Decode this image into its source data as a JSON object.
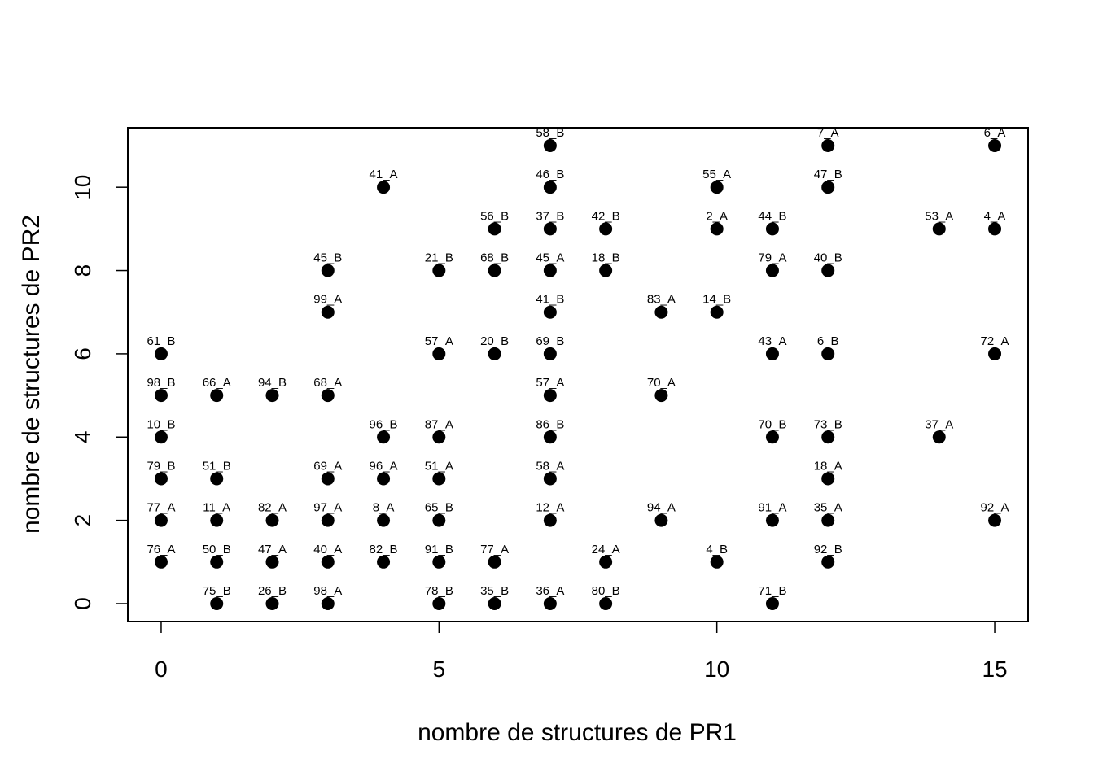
{
  "chart_data": {
    "type": "scatter",
    "title": "",
    "xlabel": "nombre de structures de PR1",
    "ylabel": "nombre de structures de PR2",
    "xlim": [
      -0.6,
      15.6
    ],
    "ylim": [
      -0.43,
      11.43
    ],
    "xticks": [
      0,
      5,
      10,
      15
    ],
    "yticks": [
      0,
      2,
      4,
      6,
      8,
      10
    ],
    "marker_color": "#000000",
    "grid": false,
    "points": [
      {
        "x": 7,
        "y": 11,
        "label": "58_B"
      },
      {
        "x": 12,
        "y": 11,
        "label": "7_A"
      },
      {
        "x": 15,
        "y": 11,
        "label": "6_A"
      },
      {
        "x": 4,
        "y": 10,
        "label": "41_A"
      },
      {
        "x": 7,
        "y": 10,
        "label": "46_B"
      },
      {
        "x": 10,
        "y": 10,
        "label": "55_A"
      },
      {
        "x": 12,
        "y": 10,
        "label": "47_B"
      },
      {
        "x": 6,
        "y": 9,
        "label": "56_B"
      },
      {
        "x": 7,
        "y": 9,
        "label": "37_B"
      },
      {
        "x": 8,
        "y": 9,
        "label": "42_B"
      },
      {
        "x": 10,
        "y": 9,
        "label": "2_A"
      },
      {
        "x": 11,
        "y": 9,
        "label": "44_B"
      },
      {
        "x": 14,
        "y": 9,
        "label": "53_A"
      },
      {
        "x": 15,
        "y": 9,
        "label": "4_A"
      },
      {
        "x": 3,
        "y": 8,
        "label": "45_B"
      },
      {
        "x": 5,
        "y": 8,
        "label": "21_B"
      },
      {
        "x": 6,
        "y": 8,
        "label": "68_B"
      },
      {
        "x": 7,
        "y": 8,
        "label": "45_A"
      },
      {
        "x": 8,
        "y": 8,
        "label": "18_B"
      },
      {
        "x": 11,
        "y": 8,
        "label": "79_A"
      },
      {
        "x": 12,
        "y": 8,
        "label": "40_B"
      },
      {
        "x": 3,
        "y": 7,
        "label": "99_A"
      },
      {
        "x": 7,
        "y": 7,
        "label": "41_B"
      },
      {
        "x": 9,
        "y": 7,
        "label": "83_A"
      },
      {
        "x": 10,
        "y": 7,
        "label": "14_B"
      },
      {
        "x": 0,
        "y": 6,
        "label": "61_B"
      },
      {
        "x": 5,
        "y": 6,
        "label": "57_A"
      },
      {
        "x": 6,
        "y": 6,
        "label": "20_B"
      },
      {
        "x": 7,
        "y": 6,
        "label": "69_B"
      },
      {
        "x": 11,
        "y": 6,
        "label": "43_A"
      },
      {
        "x": 12,
        "y": 6,
        "label": "6_B"
      },
      {
        "x": 15,
        "y": 6,
        "label": "72_A"
      },
      {
        "x": 0,
        "y": 5,
        "label": "98_B"
      },
      {
        "x": 1,
        "y": 5,
        "label": "66_A"
      },
      {
        "x": 2,
        "y": 5,
        "label": "94_B"
      },
      {
        "x": 3,
        "y": 5,
        "label": "68_A"
      },
      {
        "x": 7,
        "y": 5,
        "label": "57_A"
      },
      {
        "x": 9,
        "y": 5,
        "label": "70_A"
      },
      {
        "x": 0,
        "y": 4,
        "label": "10_B"
      },
      {
        "x": 4,
        "y": 4,
        "label": "96_B"
      },
      {
        "x": 5,
        "y": 4,
        "label": "87_A"
      },
      {
        "x": 7,
        "y": 4,
        "label": "86_B"
      },
      {
        "x": 11,
        "y": 4,
        "label": "70_B"
      },
      {
        "x": 12,
        "y": 4,
        "label": "73_B"
      },
      {
        "x": 14,
        "y": 4,
        "label": "37_A"
      },
      {
        "x": 0,
        "y": 3,
        "label": "79_B"
      },
      {
        "x": 1,
        "y": 3,
        "label": "51_B"
      },
      {
        "x": 3,
        "y": 3,
        "label": "69_A"
      },
      {
        "x": 4,
        "y": 3,
        "label": "96_A"
      },
      {
        "x": 5,
        "y": 3,
        "label": "51_A"
      },
      {
        "x": 7,
        "y": 3,
        "label": "58_A"
      },
      {
        "x": 12,
        "y": 3,
        "label": "18_A"
      },
      {
        "x": 0,
        "y": 2,
        "label": "77_A"
      },
      {
        "x": 1,
        "y": 2,
        "label": "11_A"
      },
      {
        "x": 2,
        "y": 2,
        "label": "82_A"
      },
      {
        "x": 3,
        "y": 2,
        "label": "97_A"
      },
      {
        "x": 4,
        "y": 2,
        "label": "8_A"
      },
      {
        "x": 5,
        "y": 2,
        "label": "65_B"
      },
      {
        "x": 7,
        "y": 2,
        "label": "12_A"
      },
      {
        "x": 9,
        "y": 2,
        "label": "94_A"
      },
      {
        "x": 11,
        "y": 2,
        "label": "91_A"
      },
      {
        "x": 12,
        "y": 2,
        "label": "35_A"
      },
      {
        "x": 15,
        "y": 2,
        "label": "92_A"
      },
      {
        "x": 0,
        "y": 1,
        "label": "76_A"
      },
      {
        "x": 1,
        "y": 1,
        "label": "50_B"
      },
      {
        "x": 2,
        "y": 1,
        "label": "47_A"
      },
      {
        "x": 3,
        "y": 1,
        "label": "40_A"
      },
      {
        "x": 4,
        "y": 1,
        "label": "82_B"
      },
      {
        "x": 5,
        "y": 1,
        "label": "91_B"
      },
      {
        "x": 6,
        "y": 1,
        "label": "77_A"
      },
      {
        "x": 8,
        "y": 1,
        "label": "24_A"
      },
      {
        "x": 10,
        "y": 1,
        "label": "4_B"
      },
      {
        "x": 12,
        "y": 1,
        "label": "92_B"
      },
      {
        "x": 1,
        "y": 0,
        "label": "75_B"
      },
      {
        "x": 2,
        "y": 0,
        "label": "26_B"
      },
      {
        "x": 3,
        "y": 0,
        "label": "98_A"
      },
      {
        "x": 5,
        "y": 0,
        "label": "78_B"
      },
      {
        "x": 6,
        "y": 0,
        "label": "35_B"
      },
      {
        "x": 7,
        "y": 0,
        "label": "36_A"
      },
      {
        "x": 8,
        "y": 0,
        "label": "80_B"
      },
      {
        "x": 11,
        "y": 0,
        "label": "71_B"
      }
    ]
  }
}
